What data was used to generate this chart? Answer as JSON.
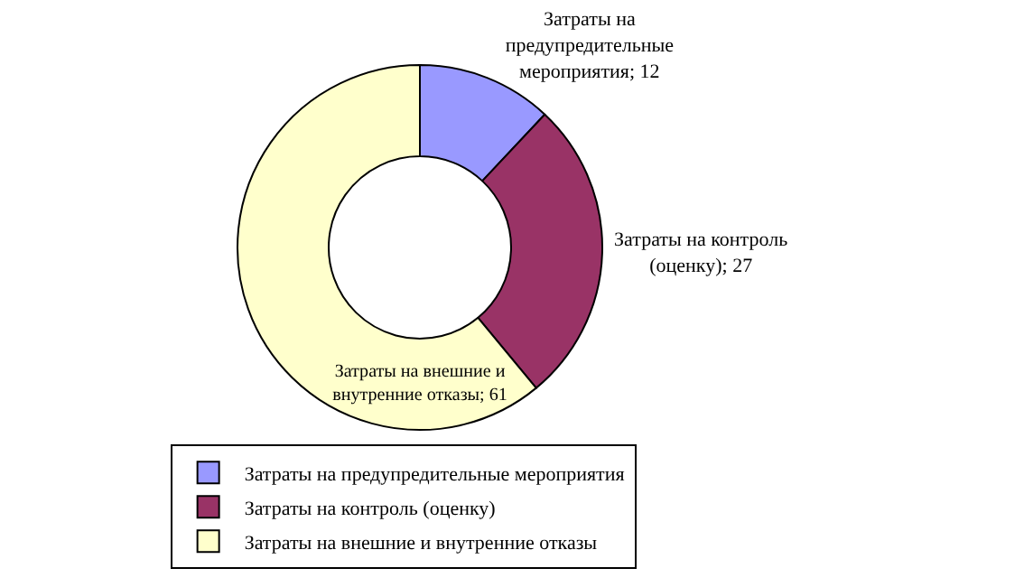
{
  "chart_data": {
    "type": "donut",
    "categories": [
      "Затраты на предупредительные мероприятия",
      "Затраты на контроль (оценку)",
      "Затраты на внешние и внутренние отказы"
    ],
    "values": [
      12,
      27,
      61
    ],
    "value_labels": [
      "Затраты на предупредительные мероприятия; 12",
      "Затраты на контроль (оценку); 27",
      "Затраты на внешние и внутренние отказы; 61"
    ],
    "colors": [
      "#9999ff",
      "#993366",
      "#ffffcc"
    ],
    "legend": "bottom"
  }
}
